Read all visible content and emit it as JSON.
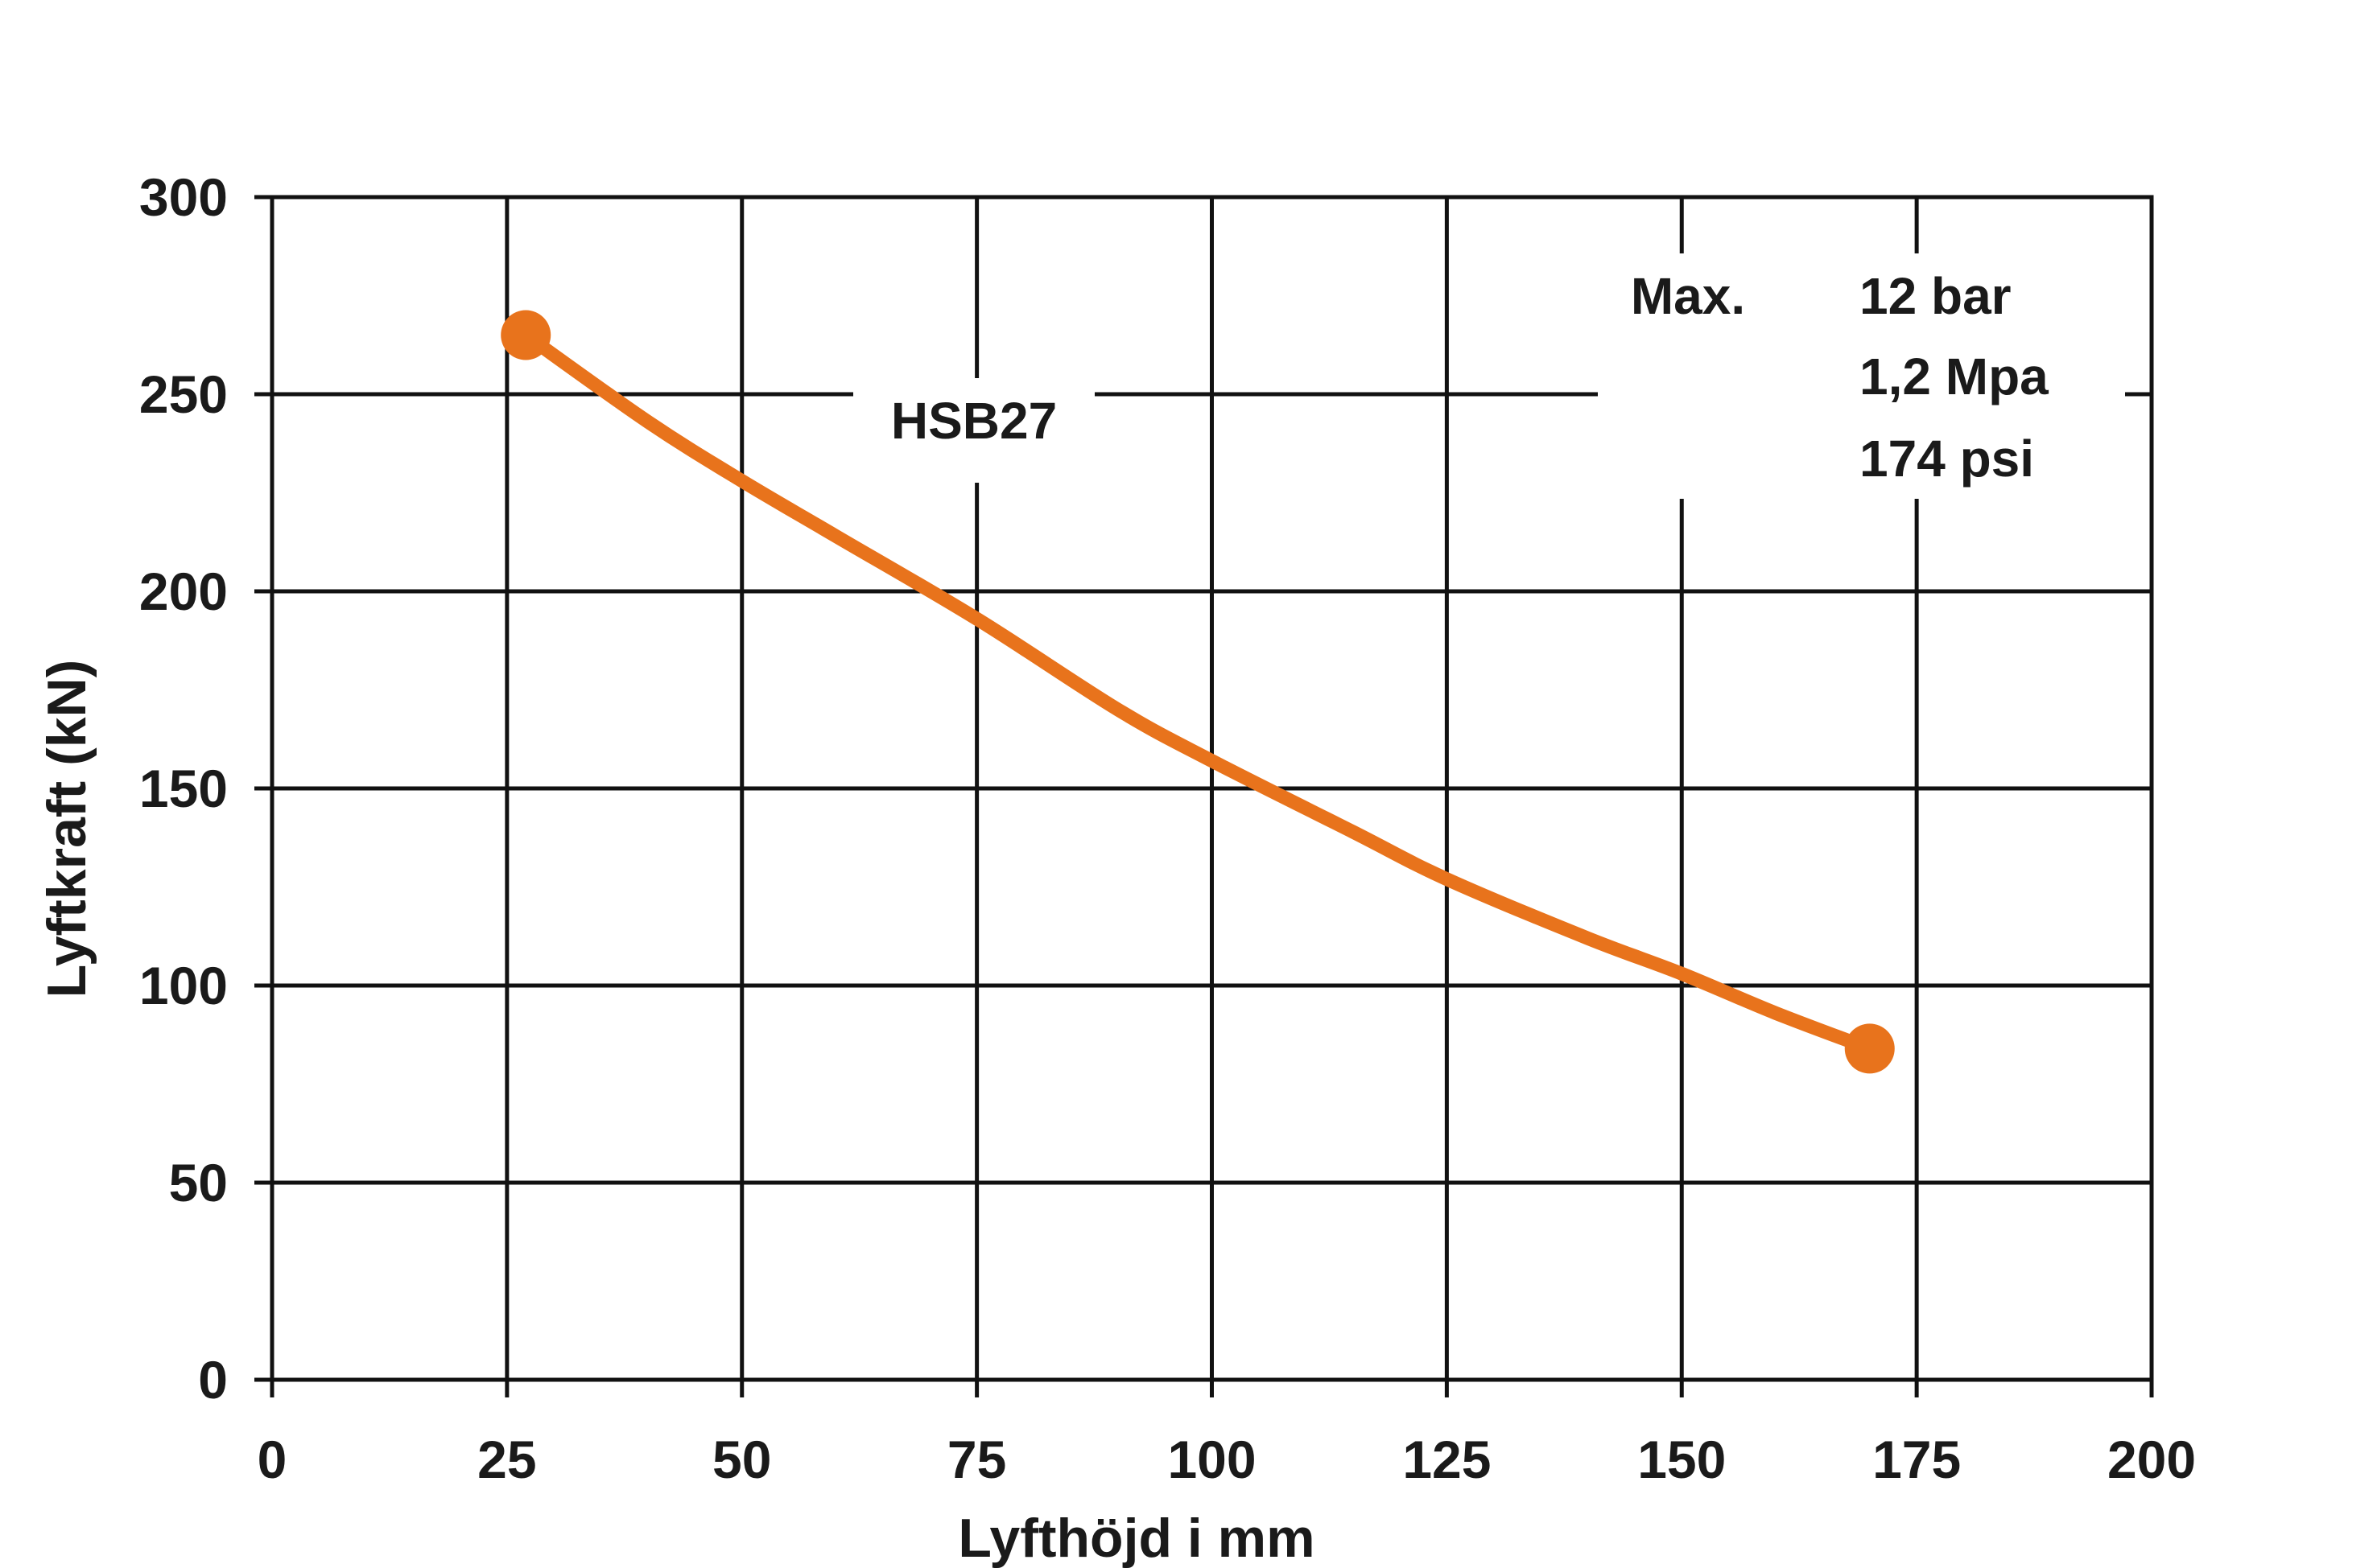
{
  "chart_data": {
    "type": "line",
    "title": "",
    "xlabel": "Lyfthöjd i mm",
    "ylabel": "Lyftkraft (kN)",
    "xlim": [
      0,
      200
    ],
    "ylim": [
      0,
      300
    ],
    "x_ticks": [
      "0",
      "25",
      "50",
      "75",
      "100",
      "125",
      "150",
      "175",
      "200"
    ],
    "y_ticks": [
      "0",
      "50",
      "100",
      "150",
      "200",
      "250",
      "300"
    ],
    "grid": true,
    "series": [
      {
        "name": "HSB27",
        "color": "#E8731C",
        "x": [
          27,
          40,
          50,
          60,
          75,
          90,
          100,
          115,
          125,
          140,
          150,
          160,
          170
        ],
        "y": [
          265,
          243,
          228,
          214,
          193,
          170,
          157,
          139,
          127,
          112,
          103,
          93,
          84
        ],
        "marker_points": [
          [
            27,
            265
          ],
          [
            170,
            84
          ]
        ]
      }
    ],
    "annotations": {
      "series_label": "HSB27",
      "max_label": "Max.",
      "pressure_lines": [
        "12 bar",
        "1,2 Mpa",
        "174 psi"
      ]
    }
  }
}
